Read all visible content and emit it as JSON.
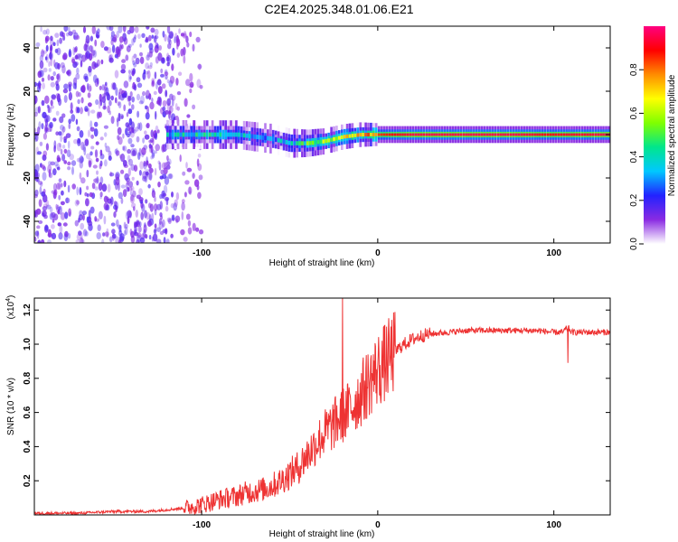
{
  "title": "C2E4.2025.348.01.06.E21",
  "colors": {
    "axis": "#000000",
    "snr_line": "#ee3333",
    "background": "#ffffff",
    "colormap": [
      "#ffffff",
      "#8a2be2",
      "#2222ff",
      "#00c8ff",
      "#00e68c",
      "#7fff00",
      "#ffff00",
      "#ff8c00",
      "#ff0000",
      "#ff0080"
    ]
  },
  "chart_data": [
    {
      "type": "heatmap",
      "name": "spectrogram",
      "xlabel": "Height of straight line (km)",
      "ylabel": "Frequency (Hz)",
      "xlim": [
        -195,
        132
      ],
      "ylim": [
        -50,
        50
      ],
      "xticks": [
        -100,
        0,
        100
      ],
      "xtick_labels": [
        "-100",
        "0",
        "100"
      ],
      "yticks": [
        -40,
        -20,
        0,
        20,
        40
      ],
      "ytick_labels": [
        "-40",
        "-20",
        "0",
        "20",
        "40"
      ],
      "colorbar": {
        "label": "Normalized spectral amplitude",
        "range": [
          0,
          1
        ],
        "ticks": [
          0,
          0.2,
          0.4,
          0.6,
          0.8
        ],
        "tick_labels": [
          "0.0",
          "0.2",
          "0.4",
          "0.6",
          "0.8"
        ]
      },
      "features": [
        {
          "kind": "noise",
          "x_range": [
            -195,
            -115
          ],
          "freq_range": [
            -50,
            50
          ],
          "amplitude": 0.15
        },
        {
          "kind": "sparse_noise",
          "x_range": [
            -115,
            -100
          ],
          "freq_range": [
            -50,
            50
          ],
          "amplitude": 0.05
        },
        {
          "kind": "signal_band",
          "x": [
            -120,
            -100,
            -80,
            -70,
            -60,
            -50,
            -40,
            -30,
            -20,
            -10,
            0,
            20,
            50,
            80,
            95,
            132
          ],
          "center_hz": [
            0,
            0,
            0,
            -1,
            -2,
            -4,
            -4,
            -3,
            -1,
            0,
            0,
            0,
            0,
            0,
            0,
            0
          ],
          "amplitude": [
            0.35,
            0.4,
            0.4,
            0.35,
            0.3,
            0.35,
            0.5,
            0.6,
            0.65,
            0.7,
            0.85,
            0.95,
            0.95,
            0.95,
            0.9,
            0.95
          ]
        }
      ]
    },
    {
      "type": "line",
      "name": "snr",
      "xlabel": "Height of straight line (km)",
      "ylabel": "SNR (10 * v/v)",
      "y_multiplier_label": "(x10",
      "y_multiplier_exp": "4",
      "y_multiplier_close": ")",
      "xlim": [
        -195,
        132
      ],
      "ylim": [
        0,
        1.27
      ],
      "xticks": [
        -100,
        0,
        100
      ],
      "xtick_labels": [
        "-100",
        "0",
        "100"
      ],
      "yticks": [
        0.2,
        0.4,
        0.6,
        0.8,
        1.0,
        1.2
      ],
      "ytick_labels": [
        "0.2",
        "0.4",
        "0.6",
        "0.8",
        "1.0",
        "1.2"
      ],
      "series": [
        {
          "name": "SNR",
          "x": [
            -195,
            -170,
            -150,
            -130,
            -120,
            -110,
            -100,
            -90,
            -80,
            -75,
            -70,
            -65,
            -60,
            -55,
            -50,
            -45,
            -40,
            -35,
            -30,
            -25,
            -20,
            -15,
            -10,
            -5,
            0,
            5,
            10,
            15,
            20,
            25,
            30,
            40,
            50,
            60,
            70,
            80,
            90,
            100,
            105,
            108,
            110,
            120,
            132
          ],
          "y": [
            0.01,
            0.01,
            0.02,
            0.02,
            0.03,
            0.04,
            0.06,
            0.09,
            0.11,
            0.13,
            0.14,
            0.15,
            0.17,
            0.2,
            0.24,
            0.28,
            0.35,
            0.42,
            0.48,
            0.53,
            0.58,
            0.63,
            0.7,
            0.78,
            0.85,
            0.9,
            0.96,
            1.0,
            1.03,
            1.05,
            1.06,
            1.07,
            1.08,
            1.08,
            1.08,
            1.08,
            1.08,
            1.07,
            1.07,
            1.1,
            1.07,
            1.07,
            1.07
          ]
        }
      ],
      "annotations": [
        {
          "x": -20,
          "y": 1.27,
          "note": "spike"
        },
        {
          "x": 108,
          "y": 0.89,
          "note": "dip"
        }
      ]
    }
  ]
}
